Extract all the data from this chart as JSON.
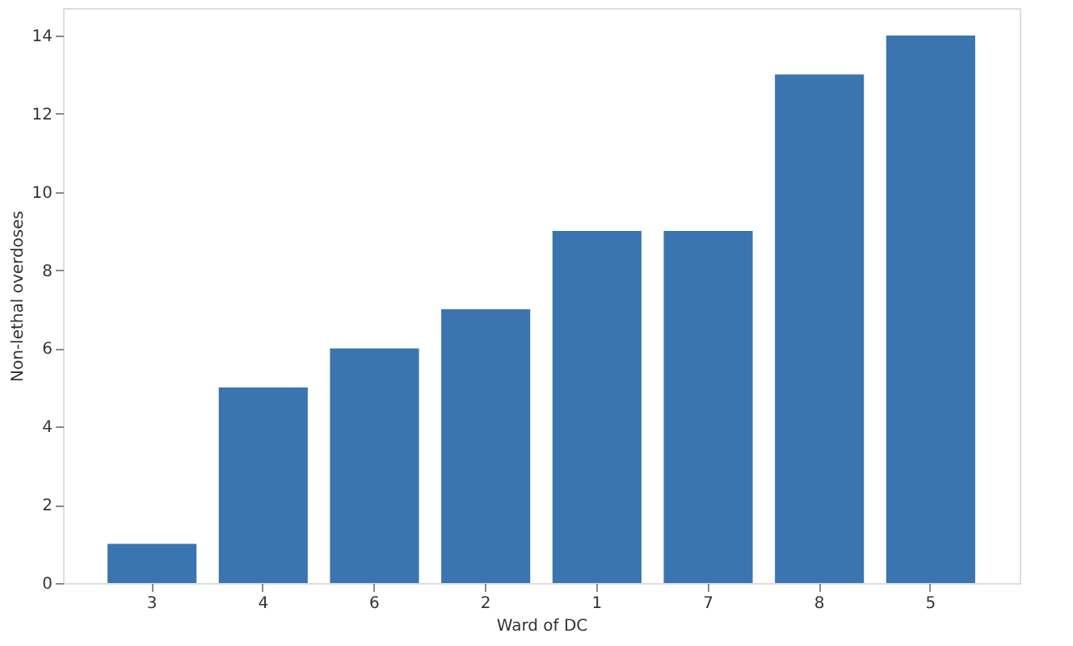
{
  "chart_data": {
    "type": "bar",
    "xlabel": "Ward of DC",
    "ylabel": "Non-lethal overdoses",
    "categories": [
      "3",
      "4",
      "6",
      "2",
      "1",
      "7",
      "8",
      "5"
    ],
    "values": [
      1,
      5,
      6,
      7,
      9,
      9,
      13,
      14
    ],
    "color": "#3a75b0",
    "ylim": [
      0,
      14.7
    ],
    "yticks": [
      0,
      2,
      4,
      6,
      8,
      10,
      12,
      14
    ],
    "grid": false
  }
}
